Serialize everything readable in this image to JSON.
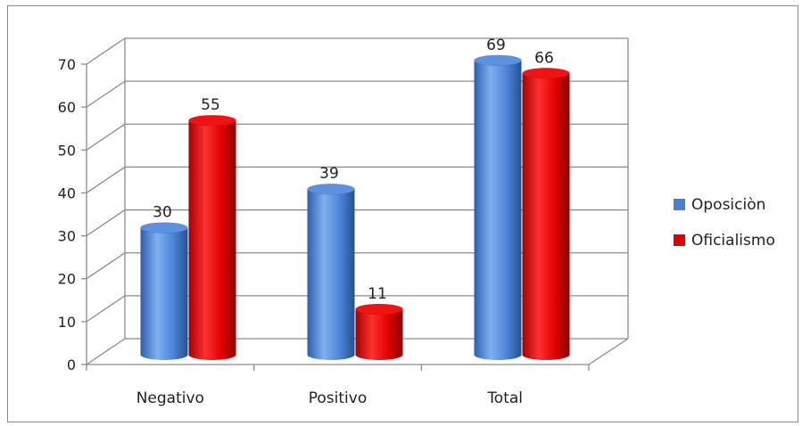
{
  "chart_data": {
    "type": "bar",
    "title": "",
    "xlabel": "",
    "ylabel": "",
    "categories": [
      "Negativo",
      "Positivo",
      "Total"
    ],
    "series": [
      {
        "name": "Oposiciòn",
        "values": [
          30,
          39,
          69
        ],
        "color": "#4a7fd4"
      },
      {
        "name": "Oficialismo",
        "values": [
          55,
          11,
          66
        ],
        "color": "#e10000"
      }
    ],
    "ylim": [
      0,
      70
    ],
    "yticks": [
      0,
      10,
      20,
      30,
      40,
      50,
      60,
      70
    ],
    "grid": true,
    "three_d": true,
    "legend_position": "right"
  }
}
